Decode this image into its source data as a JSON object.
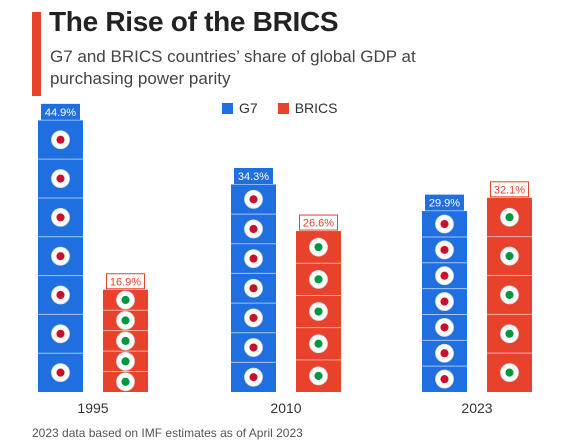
{
  "header": {
    "title": "The Rise of the BRICS",
    "subtitle": "G7 and BRICS countries’ share of global GDP at purchasing power parity"
  },
  "footnote": "2023 data based on IMF estimates as of April 2023",
  "colors": {
    "g7": "#1f6fe0",
    "brics": "#e8412c",
    "accent": "#e8412c"
  },
  "chart_data": {
    "type": "bar",
    "categories": [
      "1995",
      "2010",
      "2023"
    ],
    "series": [
      {
        "name": "G7",
        "values": [
          44.9,
          34.3,
          29.9
        ],
        "labels": [
          "44.9%",
          "34.3%",
          "29.9%"
        ],
        "color": "#1f6fe0"
      },
      {
        "name": "BRICS",
        "values": [
          16.9,
          26.6,
          32.1
        ],
        "labels": [
          "16.9%",
          "26.6%",
          "32.1%"
        ],
        "color": "#e8412c"
      }
    ],
    "ylim": [
      0,
      50
    ],
    "legend_position": "top-center",
    "grid": false,
    "segment_icons": {
      "G7": [
        "canada-flag-icon",
        "uk-flag-icon",
        "france-flag-icon",
        "italy-flag-icon",
        "germany-flag-icon",
        "japan-flag-icon",
        "usa-flag-icon"
      ],
      "BRICS": [
        "south-africa-flag-icon",
        "brazil-flag-icon",
        "russia-flag-icon",
        "india-flag-icon",
        "china-flag-icon"
      ]
    }
  }
}
